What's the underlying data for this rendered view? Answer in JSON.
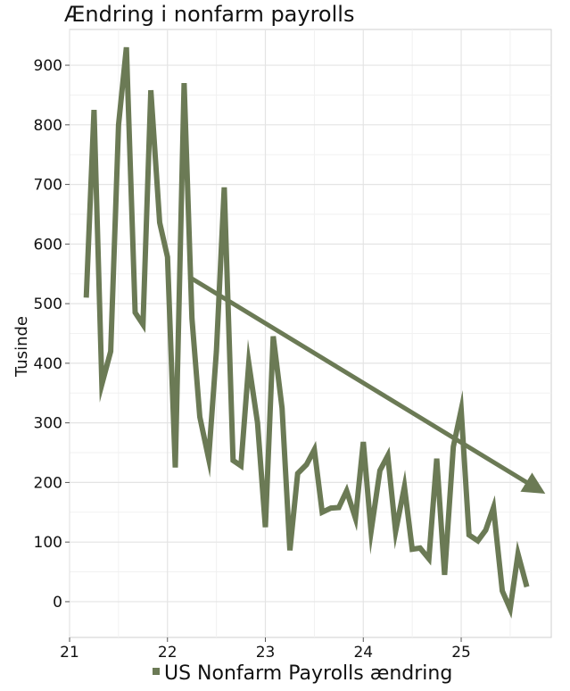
{
  "chart_data": {
    "type": "line",
    "title": "Ændring i nonfarm payrolls",
    "xlabel": "",
    "ylabel": "Tusinde",
    "xlim": [
      21.0,
      25.92
    ],
    "ylim": [
      -60,
      960
    ],
    "x_ticks": [
      21,
      22,
      23,
      24,
      25
    ],
    "y_ticks": [
      0,
      100,
      200,
      300,
      400,
      500,
      600,
      700,
      800,
      900
    ],
    "grid": true,
    "legend_position": "bottom",
    "series": [
      {
        "name": "US Nonfarm Payrolls ændring",
        "color": "#6b7a55",
        "x": [
          21.17,
          21.25,
          21.33,
          21.42,
          21.5,
          21.58,
          21.67,
          21.75,
          21.83,
          21.92,
          22.0,
          22.08,
          22.17,
          22.25,
          22.33,
          22.42,
          22.5,
          22.58,
          22.67,
          22.75,
          22.83,
          22.92,
          23.0,
          23.08,
          23.17,
          23.25,
          23.33,
          23.42,
          23.5,
          23.58,
          23.67,
          23.75,
          23.83,
          23.92,
          24.0,
          24.08,
          24.17,
          24.25,
          24.33,
          24.42,
          24.5,
          24.58,
          24.67,
          24.75,
          24.83,
          24.92,
          25.0,
          25.08,
          25.17,
          25.25,
          25.33,
          25.42,
          25.5,
          25.58,
          25.67
        ],
        "y": [
          510,
          825,
          365,
          420,
          800,
          930,
          485,
          465,
          858,
          636,
          578,
          225,
          870,
          475,
          310,
          240,
          420,
          695,
          237,
          228,
          400,
          300,
          125,
          445,
          325,
          86,
          215,
          230,
          255,
          150,
          157,
          158,
          186,
          140,
          268,
          118,
          220,
          245,
          118,
          193,
          88,
          90,
          72,
          240,
          45,
          260,
          322,
          112,
          102,
          120,
          158,
          18,
          -12,
          80,
          25
        ]
      }
    ],
    "annotations": [
      {
        "type": "arrow",
        "from": [
          22.22,
          545
        ],
        "to": [
          25.82,
          185
        ],
        "color": "#6b7a55"
      }
    ]
  }
}
